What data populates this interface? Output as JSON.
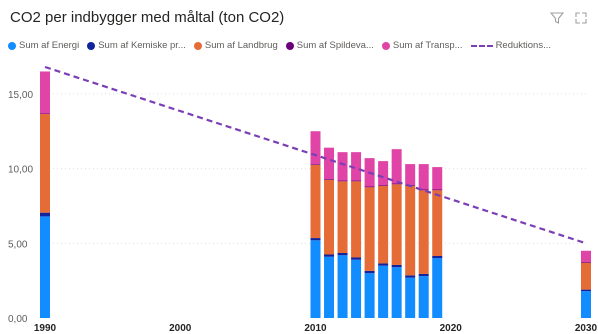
{
  "chart_data": {
    "type": "bar",
    "title": "CO2 per indbygger med måltal (ton CO2)",
    "stacked": true,
    "legend_position": "top-left",
    "grid": true,
    "ylim": [
      0,
      17
    ],
    "yticks": [
      0,
      5,
      10,
      15
    ],
    "ytick_labels": [
      "0,00",
      "5,00",
      "10,00",
      "15,00"
    ],
    "xlim": [
      1990,
      2030
    ],
    "xticks": [
      1990,
      2000,
      2010,
      2020,
      2030
    ],
    "x": [
      1990,
      2010,
      2011,
      2012,
      2013,
      2014,
      2015,
      2016,
      2017,
      2018,
      2019,
      2030
    ],
    "series": [
      {
        "name": "Sum af Energi",
        "legend_label": "Sum af Energi",
        "color": "#118dff",
        "values": [
          6.8,
          5.2,
          4.1,
          4.2,
          3.9,
          3.0,
          3.5,
          3.4,
          2.7,
          2.8,
          4.0,
          1.8
        ]
      },
      {
        "name": "Sum af Kemiske processer",
        "legend_label": "Sum af Kemiske pr...",
        "color": "#12239e",
        "values": [
          0.25,
          0.15,
          0.15,
          0.15,
          0.15,
          0.15,
          0.15,
          0.15,
          0.15,
          0.15,
          0.15,
          0.1
        ]
      },
      {
        "name": "Sum af Landbrug",
        "legend_label": "Sum af Landbrug",
        "color": "#e66c37",
        "values": [
          6.6,
          4.9,
          5.0,
          4.8,
          5.1,
          5.6,
          5.2,
          5.4,
          6.0,
          5.6,
          4.4,
          1.8
        ]
      },
      {
        "name": "Sum af Spildevand",
        "legend_label": "Sum af Spildeva...",
        "color": "#6b007b",
        "values": [
          0.05,
          0.05,
          0.05,
          0.05,
          0.05,
          0.05,
          0.05,
          0.05,
          0.05,
          0.05,
          0.05,
          0.05
        ]
      },
      {
        "name": "Sum af Transport",
        "legend_label": "Sum af Transp...",
        "color": "#e044a7",
        "values": [
          2.8,
          2.2,
          2.1,
          1.9,
          1.9,
          1.9,
          1.6,
          2.3,
          1.4,
          1.7,
          1.5,
          0.75
        ]
      }
    ],
    "reduction_line": {
      "name": "Reduktionsmål",
      "legend_label": "Reduktions...",
      "color": "#7b3fb5",
      "points": [
        [
          1990,
          16.8
        ],
        [
          2030,
          5.0
        ]
      ]
    }
  },
  "header": {
    "filter_icon": "filter-icon",
    "focus_icon": "focus-mode-icon"
  }
}
